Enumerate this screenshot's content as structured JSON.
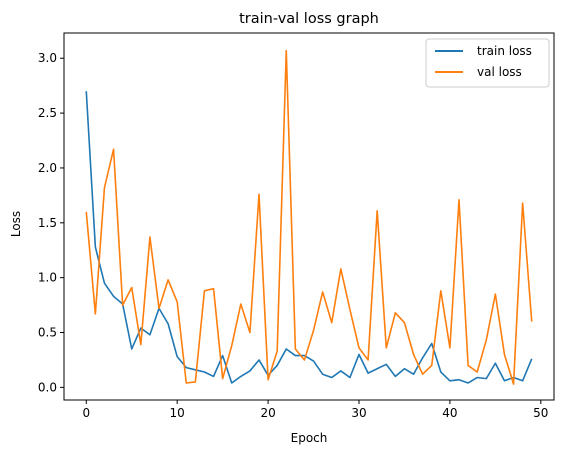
{
  "chart_data": {
    "type": "line",
    "title": "train-val loss graph",
    "xlabel": "Epoch",
    "ylabel": "Loss",
    "xlim": [
      -2.45,
      51.45
    ],
    "ylim": [
      -0.115,
      3.23
    ],
    "xticks": [
      0,
      10,
      20,
      30,
      40,
      50
    ],
    "yticks": [
      0.0,
      0.5,
      1.0,
      1.5,
      2.0,
      2.5,
      3.0
    ],
    "xtick_labels": [
      "0",
      "10",
      "20",
      "30",
      "40",
      "50"
    ],
    "ytick_labels": [
      "0.0",
      "0.5",
      "1.0",
      "1.5",
      "2.0",
      "2.5",
      "3.0"
    ],
    "grid": false,
    "legend_position": "upper right",
    "x": [
      0,
      1,
      2,
      3,
      4,
      5,
      6,
      7,
      8,
      9,
      10,
      11,
      12,
      13,
      14,
      15,
      16,
      17,
      18,
      19,
      20,
      21,
      22,
      23,
      24,
      25,
      26,
      27,
      28,
      29,
      30,
      31,
      32,
      33,
      34,
      35,
      36,
      37,
      38,
      39,
      40,
      41,
      42,
      43,
      44,
      45,
      46,
      47,
      48,
      49
    ],
    "series": [
      {
        "name": "train loss",
        "color": "#1f77b4",
        "values": [
          2.7,
          1.28,
          0.95,
          0.83,
          0.76,
          0.35,
          0.54,
          0.48,
          0.72,
          0.58,
          0.28,
          0.18,
          0.16,
          0.14,
          0.1,
          0.29,
          0.04,
          0.1,
          0.15,
          0.25,
          0.11,
          0.2,
          0.35,
          0.29,
          0.29,
          0.24,
          0.12,
          0.09,
          0.15,
          0.09,
          0.3,
          0.13,
          0.17,
          0.21,
          0.1,
          0.17,
          0.12,
          0.27,
          0.4,
          0.14,
          0.06,
          0.07,
          0.04,
          0.09,
          0.08,
          0.22,
          0.06,
          0.09,
          0.06,
          0.26
        ]
      },
      {
        "name": "val loss",
        "color": "#ff7f0e",
        "values": [
          1.6,
          0.67,
          1.82,
          2.17,
          0.75,
          0.91,
          0.39,
          1.37,
          0.72,
          0.98,
          0.78,
          0.04,
          0.05,
          0.88,
          0.9,
          0.08,
          0.38,
          0.76,
          0.5,
          1.76,
          0.07,
          0.33,
          3.07,
          0.35,
          0.25,
          0.52,
          0.87,
          0.59,
          1.08,
          0.71,
          0.36,
          0.25,
          1.61,
          0.36,
          0.68,
          0.59,
          0.3,
          0.12,
          0.2,
          0.88,
          0.36,
          1.71,
          0.2,
          0.14,
          0.43,
          0.85,
          0.3,
          0.03,
          1.68,
          0.6
        ]
      }
    ]
  }
}
